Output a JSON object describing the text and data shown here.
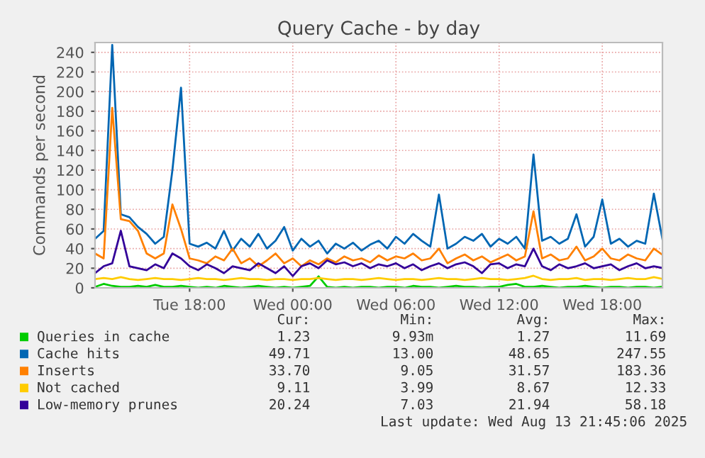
{
  "chart_data": {
    "type": "line",
    "title": "Query Cache - by day",
    "ylabel": "Commands per second",
    "x": [
      "2025-08-12T12:30",
      "2025-08-12T13:00",
      "2025-08-12T13:30",
      "2025-08-12T14:00",
      "2025-08-12T14:30",
      "2025-08-12T15:00",
      "2025-08-12T15:30",
      "2025-08-12T16:00",
      "2025-08-12T16:30",
      "2025-08-12T17:00",
      "2025-08-12T17:30",
      "2025-08-12T18:00",
      "2025-08-12T18:30",
      "2025-08-12T19:00",
      "2025-08-12T19:30",
      "2025-08-12T20:00",
      "2025-08-12T20:30",
      "2025-08-12T21:00",
      "2025-08-12T21:30",
      "2025-08-12T22:00",
      "2025-08-12T22:30",
      "2025-08-12T23:00",
      "2025-08-12T23:30",
      "2025-08-13T00:00",
      "2025-08-13T00:30",
      "2025-08-13T01:00",
      "2025-08-13T01:30",
      "2025-08-13T02:00",
      "2025-08-13T02:30",
      "2025-08-13T03:00",
      "2025-08-13T03:30",
      "2025-08-13T04:00",
      "2025-08-13T04:30",
      "2025-08-13T05:00",
      "2025-08-13T05:30",
      "2025-08-13T06:00",
      "2025-08-13T06:30",
      "2025-08-13T07:00",
      "2025-08-13T07:30",
      "2025-08-13T08:00",
      "2025-08-13T08:30",
      "2025-08-13T09:00",
      "2025-08-13T09:30",
      "2025-08-13T10:00",
      "2025-08-13T10:30",
      "2025-08-13T11:00",
      "2025-08-13T11:30",
      "2025-08-13T12:00",
      "2025-08-13T12:30",
      "2025-08-13T13:00",
      "2025-08-13T13:30",
      "2025-08-13T14:00",
      "2025-08-13T14:30",
      "2025-08-13T15:00",
      "2025-08-13T15:30",
      "2025-08-13T16:00",
      "2025-08-13T16:30",
      "2025-08-13T17:00",
      "2025-08-13T17:30",
      "2025-08-13T18:00",
      "2025-08-13T18:30",
      "2025-08-13T19:00",
      "2025-08-13T19:30",
      "2025-08-13T20:00",
      "2025-08-13T20:30",
      "2025-08-13T21:00",
      "2025-08-13T21:30"
    ],
    "series": [
      {
        "name": "Queries in cache",
        "color": "#00cc00",
        "values": [
          1,
          4,
          2,
          1,
          1,
          2,
          1,
          3,
          1,
          1,
          2,
          1,
          0,
          1,
          0,
          2,
          1,
          0,
          1,
          2,
          1,
          0,
          1,
          0,
          1,
          2,
          11.69,
          1,
          0,
          1,
          0,
          1,
          1,
          0,
          1,
          1,
          0,
          2,
          1,
          1,
          0,
          1,
          2,
          1,
          1,
          0,
          1,
          1,
          3,
          4,
          1,
          1,
          2,
          1,
          0,
          1,
          1,
          2,
          1,
          0,
          1,
          1,
          0,
          1,
          1,
          0,
          1.23
        ]
      },
      {
        "name": "Cache hits",
        "color": "#0066b3",
        "values": [
          50,
          58,
          247.55,
          75,
          72,
          62,
          55,
          45,
          52,
          120,
          204,
          45,
          42,
          46,
          40,
          58,
          38,
          50,
          42,
          55,
          40,
          48,
          62,
          38,
          50,
          42,
          48,
          35,
          45,
          40,
          46,
          38,
          44,
          48,
          40,
          52,
          45,
          55,
          48,
          42,
          95,
          40,
          45,
          52,
          48,
          55,
          42,
          50,
          45,
          52,
          40,
          136,
          48,
          52,
          45,
          50,
          75,
          42,
          52,
          90,
          45,
          50,
          42,
          48,
          45,
          96,
          49.71
        ]
      },
      {
        "name": "Inserts",
        "color": "#ff8000",
        "values": [
          35,
          30,
          183.36,
          70,
          68,
          58,
          35,
          30,
          35,
          85,
          60,
          30,
          28,
          25,
          32,
          28,
          40,
          25,
          30,
          22,
          28,
          35,
          25,
          30,
          22,
          28,
          24,
          30,
          26,
          32,
          28,
          30,
          26,
          33,
          28,
          32,
          30,
          35,
          28,
          30,
          40,
          25,
          30,
          34,
          28,
          32,
          26,
          30,
          34,
          28,
          32,
          78,
          30,
          34,
          28,
          30,
          42,
          28,
          32,
          40,
          30,
          28,
          34,
          30,
          28,
          40,
          33.7
        ]
      },
      {
        "name": "Not cached",
        "color": "#ffcc00",
        "values": [
          9,
          10,
          9,
          11,
          9,
          8,
          9,
          10,
          9,
          9,
          8,
          9,
          10,
          9,
          9,
          8,
          9,
          10,
          9,
          9,
          8,
          9,
          9,
          8,
          9,
          9,
          10,
          9,
          8,
          9,
          9,
          8,
          9,
          10,
          9,
          8,
          9,
          9,
          8,
          9,
          10,
          9,
          9,
          8,
          9,
          10,
          9,
          9,
          8,
          9,
          10,
          12.33,
          9,
          8,
          9,
          9,
          10,
          8,
          9,
          9,
          8,
          9,
          10,
          9,
          9,
          11,
          9.11
        ]
      },
      {
        "name": "Low-memory prunes",
        "color": "#330099",
        "values": [
          15,
          22,
          25,
          58.18,
          22,
          20,
          18,
          24,
          20,
          35,
          30,
          22,
          18,
          24,
          20,
          15,
          22,
          20,
          18,
          25,
          20,
          15,
          22,
          12,
          22,
          25,
          20,
          28,
          24,
          26,
          22,
          25,
          20,
          24,
          22,
          25,
          20,
          24,
          18,
          22,
          25,
          20,
          24,
          26,
          22,
          15,
          24,
          25,
          20,
          24,
          22,
          40,
          22,
          18,
          24,
          20,
          22,
          25,
          20,
          22,
          24,
          18,
          22,
          25,
          20,
          22,
          20.24
        ]
      }
    ],
    "xlim": [
      "2025-08-12T12:30",
      "2025-08-13T21:30"
    ],
    "xticks": [
      {
        "value": "2025-08-12T18:00",
        "label": "Tue 18:00"
      },
      {
        "value": "2025-08-13T00:00",
        "label": "Wed 00:00"
      },
      {
        "value": "2025-08-13T06:00",
        "label": "Wed 06:00"
      },
      {
        "value": "2025-08-13T12:00",
        "label": "Wed 12:00"
      },
      {
        "value": "2025-08-13T18:00",
        "label": "Wed 18:00"
      }
    ],
    "ylim": [
      0,
      250
    ],
    "yticks": [
      0,
      20,
      40,
      60,
      80,
      100,
      120,
      140,
      160,
      180,
      200,
      220,
      240
    ],
    "grid": true,
    "legend": "bottom",
    "annotations": [
      "Cur:",
      "Min:",
      "Avg:",
      "Max:",
      "1.23",
      "9.93m",
      "1.27",
      "11.69",
      "49.71",
      "13.00",
      "48.65",
      "247.55",
      "33.70",
      "9.05",
      "31.57",
      "183.36",
      "9.11",
      "3.99",
      "8.67",
      "12.33",
      "20.24",
      "7.03",
      "21.94",
      "58.18",
      "Last update: Wed Aug 13 21:45:06 2025"
    ]
  }
}
